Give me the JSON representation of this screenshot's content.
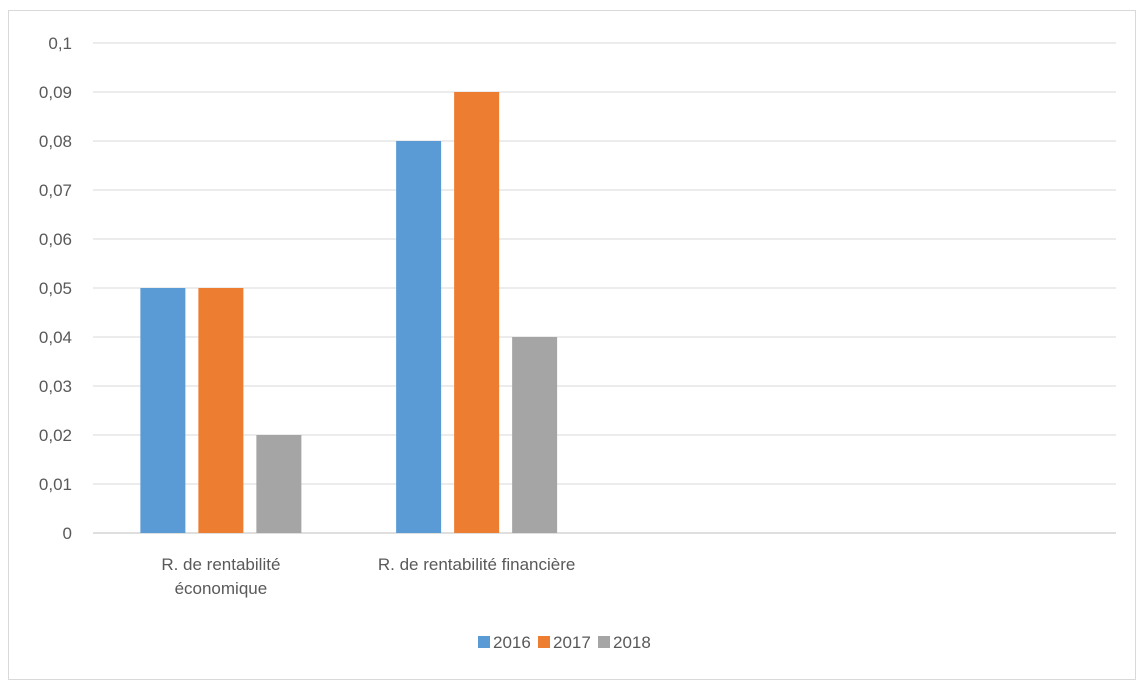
{
  "chart_data": {
    "type": "bar",
    "title": "",
    "xlabel": "",
    "ylabel": "",
    "categories": [
      [
        "R. de rentabilité",
        "économique"
      ],
      [
        "R. de rentabilité financière"
      ],
      [
        ""
      ]
    ],
    "series": [
      {
        "name": "2016",
        "color": "#5b9bd5",
        "values": [
          0.05,
          0.08,
          null
        ]
      },
      {
        "name": "2017",
        "color": "#ed7d31",
        "values": [
          0.05,
          0.09,
          null
        ]
      },
      {
        "name": "2018",
        "color": "#a5a5a5",
        "values": [
          0.02,
          0.04,
          null
        ]
      }
    ],
    "ylim": [
      0,
      0.1
    ],
    "yticks": [
      "0",
      "0,01",
      "0,02",
      "0,03",
      "0,04",
      "0,05",
      "0,06",
      "0,07",
      "0,08",
      "0,09",
      "0,1"
    ],
    "grid": true,
    "legend_position": "bottom"
  }
}
